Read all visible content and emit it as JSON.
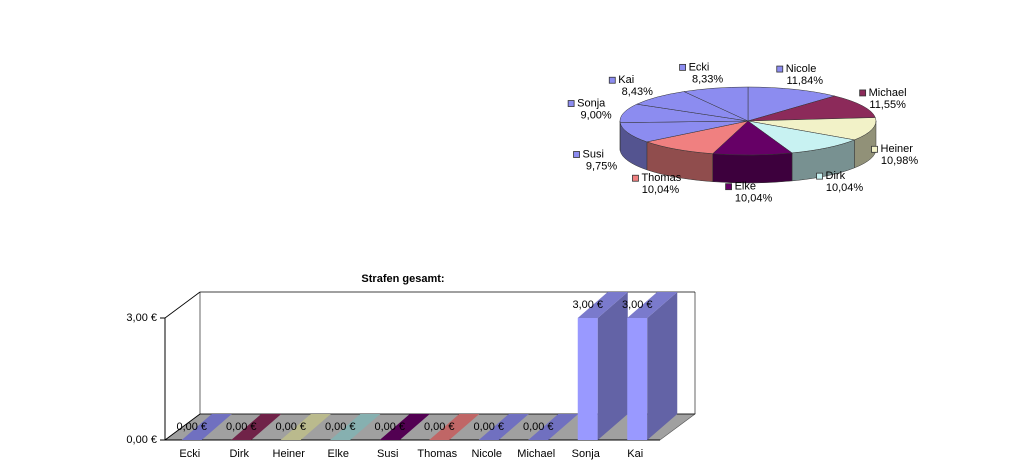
{
  "chart_data": [
    {
      "type": "pie3d",
      "categories": [
        "Nicole",
        "Michael",
        "Heiner",
        "Dirk",
        "Elke",
        "Thomas",
        "Susi",
        "Sonja",
        "Kai",
        "Ecki"
      ],
      "values": [
        11.84,
        11.55,
        10.98,
        10.04,
        10.04,
        10.04,
        9.75,
        9.0,
        8.43,
        8.33
      ],
      "value_labels": [
        "11,84%",
        "11,55%",
        "10,98%",
        "10,04%",
        "10,04%",
        "10,04%",
        "9,75%",
        "9,00%",
        "8,43%",
        "8,33%"
      ],
      "colors": [
        "#8c8cf0",
        "#8c2a5a",
        "#f2f2c8",
        "#c8f2f2",
        "#660066",
        "#f08080",
        "#8c8cf0",
        "#8c8cf0",
        "#8c8cf0",
        "#8c8cf0"
      ]
    },
    {
      "type": "bar3d",
      "title": "Strafen gesamt:",
      "categories": [
        "Ecki",
        "Dirk",
        "Heiner",
        "Elke",
        "Susi",
        "Thomas",
        "Nicole",
        "Michael",
        "Sonja",
        "Kai"
      ],
      "values": [
        0,
        0,
        0,
        0,
        0,
        0,
        0,
        0,
        3,
        3
      ],
      "value_labels": [
        "0,00 €",
        "0,00 €",
        "0,00 €",
        "0,00 €",
        "0,00 €",
        "0,00 €",
        "0,00 €",
        "0,00 €",
        "3,00 €",
        "3,00 €"
      ],
      "colors": [
        "#8c8cf0",
        "#8c2a5a",
        "#e8e8b0",
        "#a8dcdc",
        "#660066",
        "#f08080",
        "#8c8cf0",
        "#8c8cf0",
        "#9999ff",
        "#9999ff"
      ],
      "ylim": [
        0,
        3
      ],
      "yticks": [
        {
          "value": 0,
          "label": "0,00 €"
        },
        {
          "value": 3,
          "label": "3,00 €"
        }
      ],
      "grid": true
    }
  ]
}
